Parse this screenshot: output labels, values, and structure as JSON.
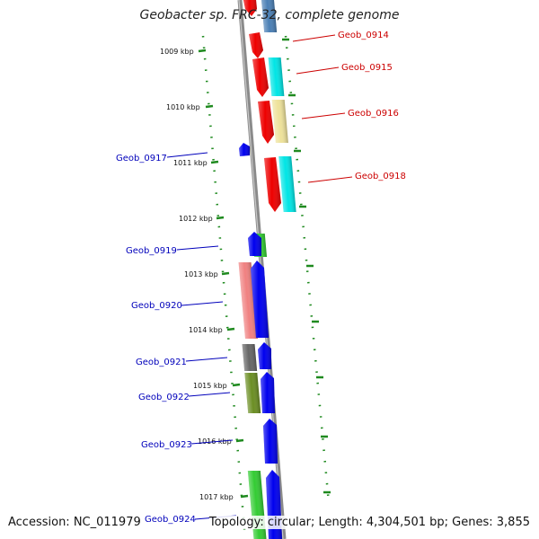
{
  "title": "Geobacter sp. FRC-32, complete genome",
  "accession_text": "Accession: NC_011979",
  "topology_text": "Topology: circular; Length: 4,304,501 bp; Genes: 3,855",
  "colors": {
    "backbone": "#8a8a8a",
    "tick": "#1f8a1f",
    "label_forward": "#cc0000",
    "label_reverse": "#0000bb",
    "blue": "#0000ee",
    "red": "#ee0000",
    "cyan": "#00e5e5",
    "khaki": "#eee29a",
    "green": "#33cc33",
    "salmon": "#f08080",
    "gray": "#666666",
    "olive": "#6b8e23",
    "steel": "#4a7fb5"
  },
  "ticks": [
    {
      "label": "1009 kbp"
    },
    {
      "label": "1010 kbp"
    },
    {
      "label": "1011 kbp"
    },
    {
      "label": "1012 kbp"
    },
    {
      "label": "1013 kbp"
    },
    {
      "label": "1014 kbp"
    },
    {
      "label": "1015 kbp"
    },
    {
      "label": "1016 kbp"
    },
    {
      "label": "1017 kbp"
    }
  ],
  "gene_labels_forward": [
    {
      "name": "Geob_0914"
    },
    {
      "name": "Geob_0915"
    },
    {
      "name": "Geob_0916"
    },
    {
      "name": "Geob_0918"
    }
  ],
  "gene_labels_reverse": [
    {
      "name": "Geob_0917"
    },
    {
      "name": "Geob_0919"
    },
    {
      "name": "Geob_0920"
    },
    {
      "name": "Geob_0921"
    },
    {
      "name": "Geob_0922"
    },
    {
      "name": "Geob_0923"
    },
    {
      "name": "Geob_0924"
    }
  ]
}
